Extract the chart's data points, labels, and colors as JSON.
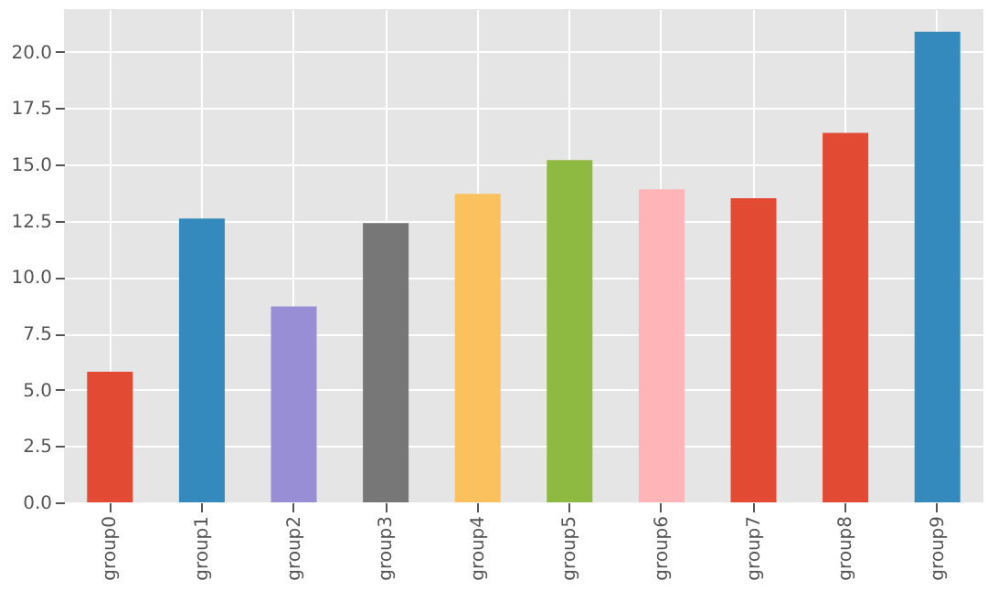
{
  "chart_data": {
    "type": "bar",
    "categories": [
      "group0",
      "group1",
      "group2",
      "group3",
      "group4",
      "group5",
      "group6",
      "group7",
      "group8",
      "group9"
    ],
    "values": [
      5.8,
      12.6,
      8.7,
      12.4,
      13.7,
      15.2,
      13.9,
      13.5,
      16.4,
      20.9
    ],
    "colors": [
      "#e24a33",
      "#348abd",
      "#988ed5",
      "#777777",
      "#fbc15e",
      "#8eba42",
      "#ffb5b8",
      "#e24a33",
      "#e24a33",
      "#348abd"
    ],
    "ylim": [
      0,
      21.9
    ],
    "yticks": [
      {
        "value": 0,
        "label": "0.0"
      },
      {
        "value": 2.5,
        "label": "2.5"
      },
      {
        "value": 5,
        "label": "5.0"
      },
      {
        "value": 7.5,
        "label": "7.5"
      },
      {
        "value": 10,
        "label": "10.0"
      },
      {
        "value": 12.5,
        "label": "12.5"
      },
      {
        "value": 15,
        "label": "15.0"
      },
      {
        "value": 17.5,
        "label": "17.5"
      },
      {
        "value": 20,
        "label": "20.0"
      }
    ],
    "grid": true
  }
}
